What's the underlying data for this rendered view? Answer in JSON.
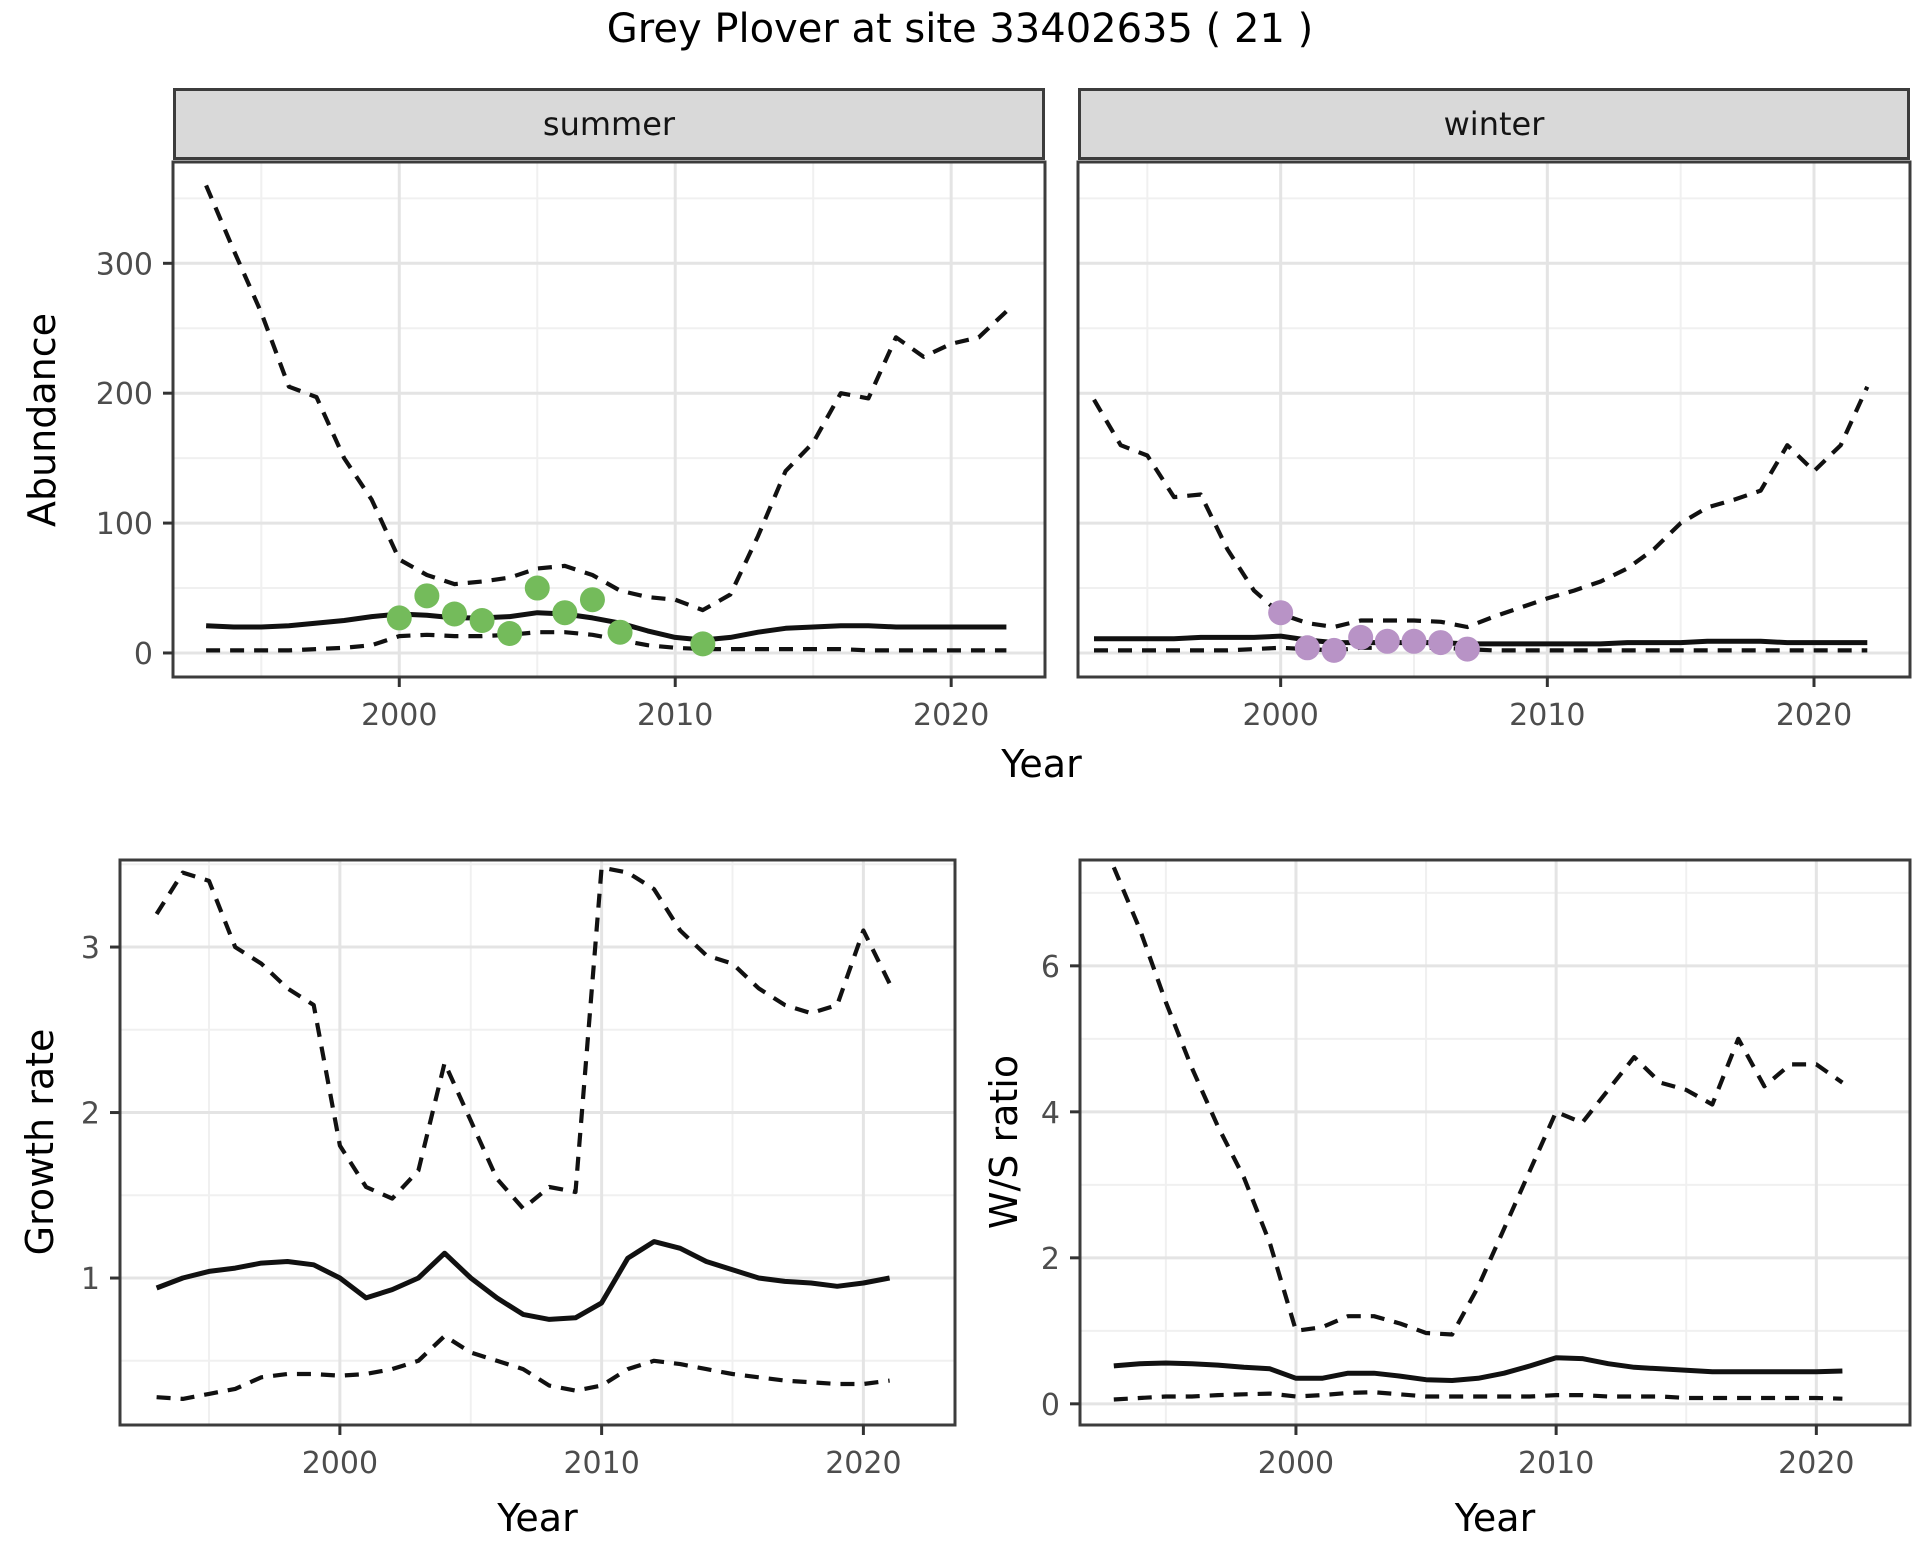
{
  "title": "Grey Plover at site 33402635 ( 21 )",
  "axes": {
    "abundance": "Abundance",
    "year": "Year",
    "growth_rate": "Growth rate",
    "ws_ratio": "W/S ratio"
  },
  "facets": {
    "summer": "summer",
    "winter": "winter"
  },
  "colors": {
    "summer_points": "#74BB5B",
    "winter_points": "#B893C6",
    "line": "#111111",
    "strip_bg": "#D9D9D9",
    "panel_border": "#3C3C3C",
    "grid_major": "#E4E4E4",
    "grid_minor": "#F0F0F0",
    "tick_text": "#4D4D4D"
  },
  "chart_data": [
    {
      "id": "abundance_summer",
      "type": "line",
      "facet": "summer",
      "xlabel": "Year",
      "ylabel": "Abundance",
      "legend": "none",
      "grid": true,
      "xlim": [
        1991.8,
        2023.4
      ],
      "ylim": [
        -18.5,
        378
      ],
      "xticks": [
        2000,
        2010,
        2020
      ],
      "yticks": [
        0,
        100,
        200,
        300
      ],
      "x": [
        1993,
        1994,
        1995,
        1996,
        1997,
        1998,
        1999,
        2000,
        2001,
        2002,
        2003,
        2004,
        2005,
        2006,
        2007,
        2008,
        2009,
        2010,
        2011,
        2012,
        2013,
        2014,
        2015,
        2016,
        2017,
        2018,
        2019,
        2020,
        2021,
        2022
      ],
      "series": [
        {
          "name": "upper_95ci",
          "style": "dashed",
          "values": [
            360,
            310,
            262,
            205,
            197,
            150,
            118,
            72,
            60,
            53,
            55,
            58,
            65,
            67,
            60,
            48,
            43,
            41,
            33,
            45,
            90,
            140,
            162,
            200,
            196,
            243,
            228,
            238,
            243,
            263
          ]
        },
        {
          "name": "mean",
          "style": "solid",
          "values": [
            21,
            20,
            20,
            21,
            23,
            25,
            28,
            30,
            29,
            27,
            27,
            28,
            31,
            30,
            27,
            23,
            17,
            12,
            10,
            12,
            16,
            19,
            20,
            21,
            21,
            20,
            20,
            20,
            20,
            20
          ]
        },
        {
          "name": "lower_95ci",
          "style": "dashed",
          "values": [
            2,
            2,
            2,
            2,
            3,
            4,
            6,
            13,
            14,
            13,
            13,
            14,
            16,
            16,
            14,
            10,
            6,
            4,
            3,
            3,
            3,
            3,
            3,
            3,
            2,
            2,
            2,
            2,
            2,
            2
          ]
        }
      ],
      "points": {
        "name": "observed_counts_summer",
        "color": "#74BB5B",
        "x": [
          2000,
          2001,
          2002,
          2003,
          2004,
          2005,
          2006,
          2007,
          2008,
          2011
        ],
        "y": [
          27,
          44,
          30,
          25,
          15,
          50,
          31,
          41,
          16,
          7
        ]
      }
    },
    {
      "id": "abundance_winter",
      "type": "line",
      "facet": "winter",
      "xlabel": "Year",
      "ylabel": "Abundance",
      "legend": "none",
      "grid": true,
      "xlim": [
        1992.4,
        2023.6
      ],
      "ylim": [
        -18.5,
        378
      ],
      "xticks": [
        2000,
        2010,
        2020
      ],
      "yticks": [
        0,
        100,
        200,
        300
      ],
      "x": [
        1993,
        1994,
        1995,
        1996,
        1997,
        1998,
        1999,
        2000,
        2001,
        2002,
        2003,
        2004,
        2005,
        2006,
        2007,
        2008,
        2009,
        2010,
        2011,
        2012,
        2013,
        2014,
        2015,
        2016,
        2017,
        2018,
        2019,
        2020,
        2021,
        2022
      ],
      "series": [
        {
          "name": "upper_95ci",
          "style": "dashed",
          "values": [
            195,
            160,
            152,
            120,
            122,
            80,
            48,
            30,
            23,
            20,
            25,
            25,
            25,
            24,
            20,
            28,
            35,
            42,
            48,
            55,
            65,
            80,
            100,
            112,
            118,
            125,
            160,
            140,
            160,
            205
          ]
        },
        {
          "name": "mean",
          "style": "solid",
          "values": [
            11,
            11,
            11,
            11,
            12,
            12,
            12,
            13,
            10,
            8,
            8,
            8,
            8,
            8,
            7,
            7,
            7,
            7,
            7,
            7,
            8,
            8,
            8,
            9,
            9,
            9,
            8,
            8,
            8,
            8
          ]
        },
        {
          "name": "lower_95ci",
          "style": "dashed",
          "values": [
            2,
            2,
            2,
            2,
            2,
            2,
            3,
            4,
            3,
            2,
            4,
            4,
            4,
            4,
            3,
            2,
            2,
            2,
            2,
            2,
            2,
            2,
            2,
            2,
            2,
            2,
            2,
            2,
            2,
            2
          ]
        }
      ],
      "points": {
        "name": "observed_counts_winter",
        "color": "#B893C6",
        "x": [
          2000,
          2001,
          2002,
          2003,
          2004,
          2005,
          2006,
          2007
        ],
        "y": [
          31,
          4,
          2,
          12,
          9,
          9,
          8,
          3
        ]
      }
    },
    {
      "id": "growth_rate",
      "type": "line",
      "facet": null,
      "xlabel": "Year",
      "ylabel": "Growth rate",
      "legend": "none",
      "grid": true,
      "xlim": [
        1991.6,
        2023.5
      ],
      "ylim": [
        0.112,
        3.526
      ],
      "xticks": [
        2000,
        2010,
        2020
      ],
      "yticks": [
        1,
        2,
        3
      ],
      "x": [
        1993,
        1994,
        1995,
        1996,
        1997,
        1998,
        1999,
        2000,
        2001,
        2002,
        2003,
        2004,
        2005,
        2006,
        2007,
        2008,
        2009,
        2010,
        2011,
        2012,
        2013,
        2014,
        2015,
        2016,
        2017,
        2018,
        2019,
        2020,
        2021
      ],
      "series": [
        {
          "name": "upper_95ci",
          "style": "dashed",
          "values": [
            3.2,
            3.45,
            3.4,
            3.0,
            2.9,
            2.75,
            2.65,
            1.8,
            1.55,
            1.48,
            1.65,
            2.3,
            1.95,
            1.6,
            1.42,
            1.55,
            1.52,
            3.48,
            3.45,
            3.35,
            3.1,
            2.95,
            2.9,
            2.75,
            2.65,
            2.6,
            2.65,
            3.1,
            2.78
          ]
        },
        {
          "name": "mean",
          "style": "solid",
          "values": [
            0.94,
            1.0,
            1.04,
            1.06,
            1.09,
            1.1,
            1.08,
            1.0,
            0.88,
            0.93,
            1.0,
            1.15,
            1.0,
            0.88,
            0.78,
            0.75,
            0.76,
            0.85,
            1.12,
            1.22,
            1.18,
            1.1,
            1.05,
            1.0,
            0.98,
            0.97,
            0.95,
            0.97,
            1.0
          ]
        },
        {
          "name": "lower_95ci",
          "style": "dashed",
          "values": [
            0.28,
            0.27,
            0.3,
            0.33,
            0.4,
            0.42,
            0.42,
            0.41,
            0.42,
            0.45,
            0.5,
            0.65,
            0.55,
            0.5,
            0.45,
            0.35,
            0.32,
            0.35,
            0.45,
            0.5,
            0.48,
            0.45,
            0.42,
            0.4,
            0.38,
            0.37,
            0.36,
            0.36,
            0.38
          ]
        }
      ],
      "points": null
    },
    {
      "id": "ws_ratio",
      "type": "line",
      "facet": null,
      "xlabel": "Year",
      "ylabel": "W/S ratio",
      "legend": "none",
      "grid": true,
      "xlim": [
        1991.7,
        2023.6
      ],
      "ylim": [
        -0.29,
        7.45
      ],
      "xticks": [
        2000,
        2010,
        2020
      ],
      "yticks": [
        0,
        2,
        4,
        6
      ],
      "x": [
        1993,
        1994,
        1995,
        1996,
        1997,
        1998,
        1999,
        2000,
        2001,
        2002,
        2003,
        2004,
        2005,
        2006,
        2007,
        2008,
        2009,
        2010,
        2011,
        2012,
        2013,
        2014,
        2015,
        2016,
        2017,
        2018,
        2019,
        2020,
        2021
      ],
      "series": [
        {
          "name": "upper_95ci",
          "style": "dashed",
          "values": [
            7.35,
            6.5,
            5.5,
            4.6,
            3.8,
            3.1,
            2.2,
            1.0,
            1.05,
            1.2,
            1.2,
            1.1,
            0.97,
            0.95,
            1.6,
            2.4,
            3.2,
            4.0,
            3.85,
            4.3,
            4.75,
            4.4,
            4.3,
            4.1,
            5.0,
            4.35,
            4.65,
            4.65,
            4.4
          ]
        },
        {
          "name": "mean",
          "style": "solid",
          "values": [
            0.52,
            0.55,
            0.56,
            0.55,
            0.53,
            0.5,
            0.48,
            0.35,
            0.35,
            0.42,
            0.42,
            0.38,
            0.33,
            0.32,
            0.35,
            0.42,
            0.52,
            0.63,
            0.62,
            0.55,
            0.5,
            0.48,
            0.46,
            0.44,
            0.44,
            0.44,
            0.44,
            0.44,
            0.45
          ]
        },
        {
          "name": "lower_95ci",
          "style": "dashed",
          "values": [
            0.06,
            0.08,
            0.1,
            0.1,
            0.12,
            0.13,
            0.14,
            0.1,
            0.12,
            0.15,
            0.16,
            0.13,
            0.1,
            0.1,
            0.1,
            0.1,
            0.1,
            0.12,
            0.12,
            0.1,
            0.1,
            0.1,
            0.08,
            0.08,
            0.08,
            0.08,
            0.08,
            0.08,
            0.07
          ]
        }
      ],
      "points": null
    }
  ]
}
